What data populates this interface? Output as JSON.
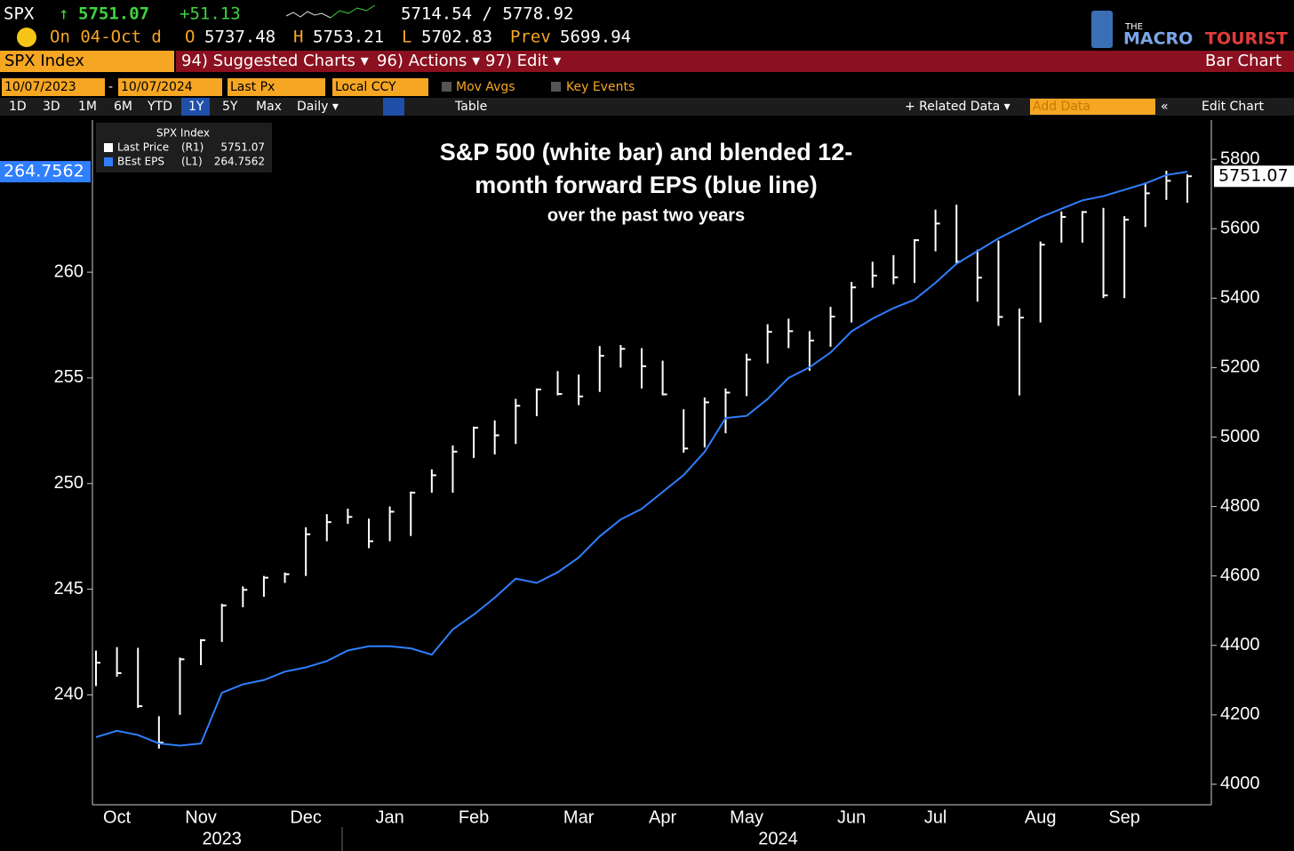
{
  "header": {
    "ticker": "SPX",
    "arrow": "↑",
    "price": "5751.07",
    "change": "+51.13",
    "range": "5714.54 / 5778.92",
    "date": "On 04-Oct d",
    "open_label": "O",
    "open": "5737.48",
    "high_label": "H",
    "high": "5753.21",
    "low_label": "L",
    "low": "5702.83",
    "prev_label": "Prev",
    "prev": "5699.94",
    "logo_top": "THE",
    "logo_a": "MACRO",
    "logo_b": "TOURIST",
    "security": "SPX Index",
    "menu": [
      "94) Suggested Charts ▾",
      "96) Actions ▾",
      "97) Edit ▾"
    ],
    "chart_kind": "Bar Chart",
    "start_date": "10/07/2023",
    "dash": "-",
    "end_date": "10/07/2024",
    "field": "Last Px",
    "currency": "Local CCY",
    "mov_avgs": "Mov Avgs",
    "key_events": "Key Events",
    "periods": [
      "1D",
      "3D",
      "1M",
      "6M",
      "YTD",
      "1Y",
      "5Y",
      "Max"
    ],
    "frequency": "Daily ▾",
    "table": "Table",
    "related": "+ Related Data ▾",
    "add_data": "Add Data",
    "back": "«",
    "edit_chart": "Edit Chart"
  },
  "chart_data": {
    "type": "line",
    "title": [
      "S&P 500 (white bar) and blended 12-",
      "month forward EPS  (blue line)"
    ],
    "subtitle": "over the past two years",
    "legend_title": "SPX Index",
    "categories": [
      null,
      "Oct",
      null,
      null,
      null,
      "Nov",
      null,
      null,
      null,
      null,
      "Dec",
      null,
      null,
      null,
      "Jan",
      null,
      null,
      null,
      "Feb",
      null,
      null,
      null,
      null,
      "Mar",
      null,
      null,
      null,
      "Apr",
      null,
      null,
      null,
      "May",
      null,
      null,
      null,
      null,
      "Jun",
      null,
      null,
      null,
      "Jul",
      null,
      null,
      null,
      null,
      "Aug",
      null,
      null,
      null,
      "Sep",
      null,
      null,
      null
    ],
    "year_labels": [
      "2023",
      "2024"
    ],
    "series": [
      {
        "name": "Last Price",
        "tag": "(R1)",
        "type": "ohlc",
        "color": "#ffffff",
        "axis": "y2",
        "high": [
          4385,
          4395,
          4393,
          4196,
          4365,
          4418,
          4520,
          4570,
          4600,
          4610,
          4740,
          4778,
          4794,
          4765,
          4800,
          4843,
          4907,
          4976,
          5030,
          5048,
          5110,
          5140,
          5190,
          5180,
          5262,
          5265,
          5256,
          5220,
          5080,
          5114,
          5140,
          5240,
          5325,
          5341,
          5305,
          5375,
          5447,
          5505,
          5524,
          5570,
          5655,
          5669,
          5540,
          5566,
          5370,
          5563,
          5650,
          5651,
          5660,
          5636,
          5733,
          5767,
          5757
        ],
        "low": [
          4283,
          4310,
          4220,
          4103,
          4200,
          4343,
          4410,
          4510,
          4540,
          4580,
          4600,
          4700,
          4750,
          4680,
          4700,
          4715,
          4840,
          4840,
          4940,
          4950,
          4980,
          5060,
          5120,
          5092,
          5130,
          5200,
          5140,
          5120,
          4955,
          4970,
          5011,
          5118,
          5212,
          5256,
          5191,
          5260,
          5330,
          5430,
          5440,
          5444,
          5535,
          5497,
          5390,
          5320,
          5120,
          5330,
          5560,
          5560,
          5400,
          5400,
          5605,
          5683,
          5675
        ],
        "values": [
          4350,
          4320,
          4225,
          4120,
          4360,
          4415,
          4515,
          4560,
          4595,
          4605,
          4720,
          4755,
          4770,
          4700,
          4785,
          4840,
          4890,
          4958,
          5027,
          5005,
          5090,
          5137,
          5124,
          5117,
          5234,
          5254,
          5204,
          5123,
          4967,
          5100,
          5128,
          5223,
          5303,
          5305,
          5278,
          5347,
          5431,
          5465,
          5460,
          5567,
          5615,
          5505,
          5459,
          5346,
          5344,
          5554,
          5634,
          5648,
          5408,
          5626,
          5702,
          5738,
          5751.07
        ]
      },
      {
        "name": "BEst EPS",
        "tag": "(L1)",
        "type": "line",
        "color": "#2f7fff",
        "values": [
          238.0,
          238.3,
          238.1,
          237.7,
          237.6,
          237.7,
          240.1,
          240.5,
          240.7,
          241.1,
          241.3,
          241.6,
          242.1,
          242.3,
          242.3,
          242.2,
          241.9,
          243.1,
          243.8,
          244.6,
          245.5,
          245.3,
          245.8,
          246.5,
          247.5,
          248.3,
          248.8,
          249.6,
          250.4,
          251.5,
          253.1,
          253.2,
          254.0,
          255.0,
          255.5,
          256.2,
          257.2,
          257.8,
          258.3,
          258.7,
          259.5,
          260.4,
          261.0,
          261.6,
          262.1,
          262.6,
          263.0,
          263.4,
          263.6,
          263.9,
          264.2,
          264.6,
          264.7562
        ]
      }
    ],
    "ylim": [
      234.8,
      267.2
    ],
    "yticks": [
      240,
      245,
      250,
      255,
      260
    ],
    "y2lim": [
      3941,
      5913
    ],
    "y2ticks": [
      4000,
      4200,
      4400,
      4600,
      4800,
      5000,
      5200,
      5400,
      5600,
      5800
    ]
  }
}
